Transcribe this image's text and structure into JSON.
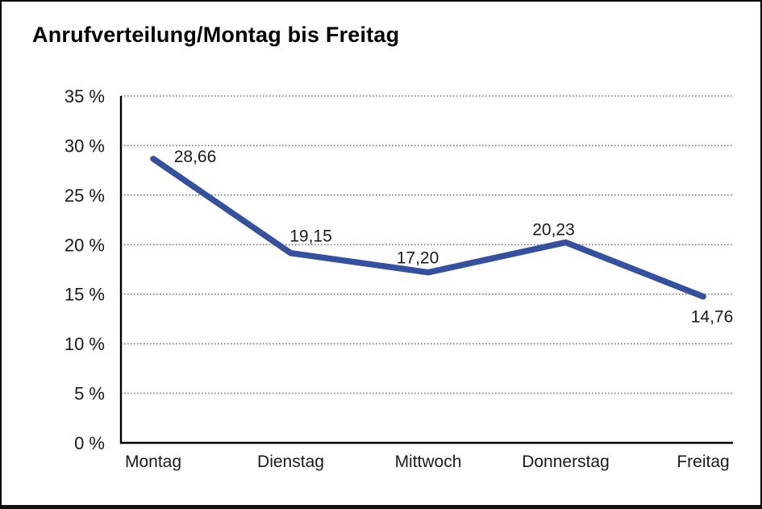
{
  "title": "Anrufverteilung/Montag bis Freitag",
  "chart_data": {
    "type": "line",
    "title": "Anrufverteilung/Montag bis Freitag",
    "categories": [
      "Montag",
      "Dienstag",
      "Mittwoch",
      "Donnerstag",
      "Freitag"
    ],
    "values": [
      28.66,
      19.15,
      17.2,
      20.23,
      14.76
    ],
    "point_labels": [
      "28,66",
      "19,15",
      "17,20",
      "20,23",
      "14,76"
    ],
    "xlabel": "",
    "ylabel": "",
    "ylim": [
      0,
      35
    ],
    "ytick_step": 5,
    "ytick_labels": [
      "0 %",
      "5 %",
      "10 %",
      "15 %",
      "20 %",
      "25 %",
      "30 %",
      "35 %"
    ],
    "grid": "horizontal-dotted",
    "legend": "none",
    "decimal_separator": ","
  },
  "colors": {
    "line": "#34519f",
    "grid": "#7a7a7a",
    "axis": "#000000",
    "text": "#1a1a1a",
    "background": "#ffffff"
  }
}
